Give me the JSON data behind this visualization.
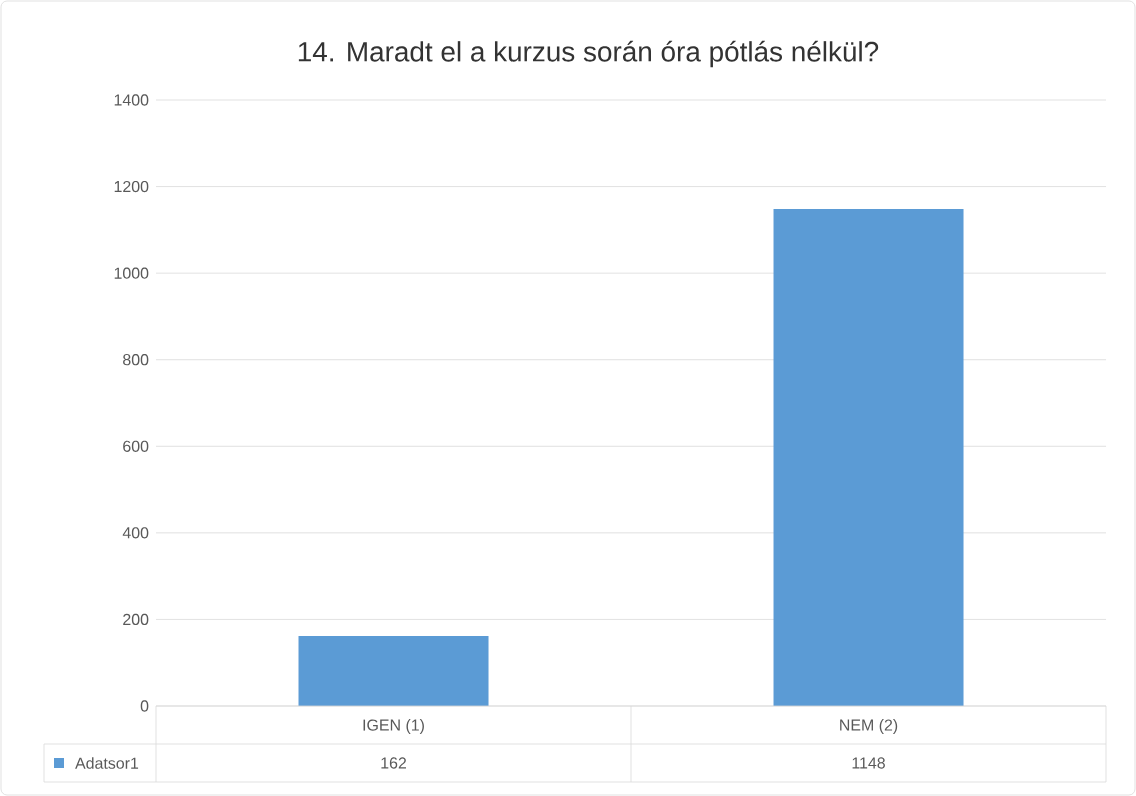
{
  "chart_data": {
    "type": "bar",
    "title": "14. Maradt el a kurzus során óra pótlás nélkül?",
    "categories": [
      "IGEN (1)",
      "NEM (2)"
    ],
    "series": [
      {
        "name": "Adatsor1",
        "color": "#5b9bd5",
        "values": [
          162,
          1148
        ]
      }
    ],
    "ylim": [
      0,
      1400
    ],
    "yticks": [
      0,
      200,
      400,
      600,
      800,
      1000,
      1200,
      1400
    ],
    "grid": "y",
    "legend": "bottom",
    "data_labels": true
  }
}
